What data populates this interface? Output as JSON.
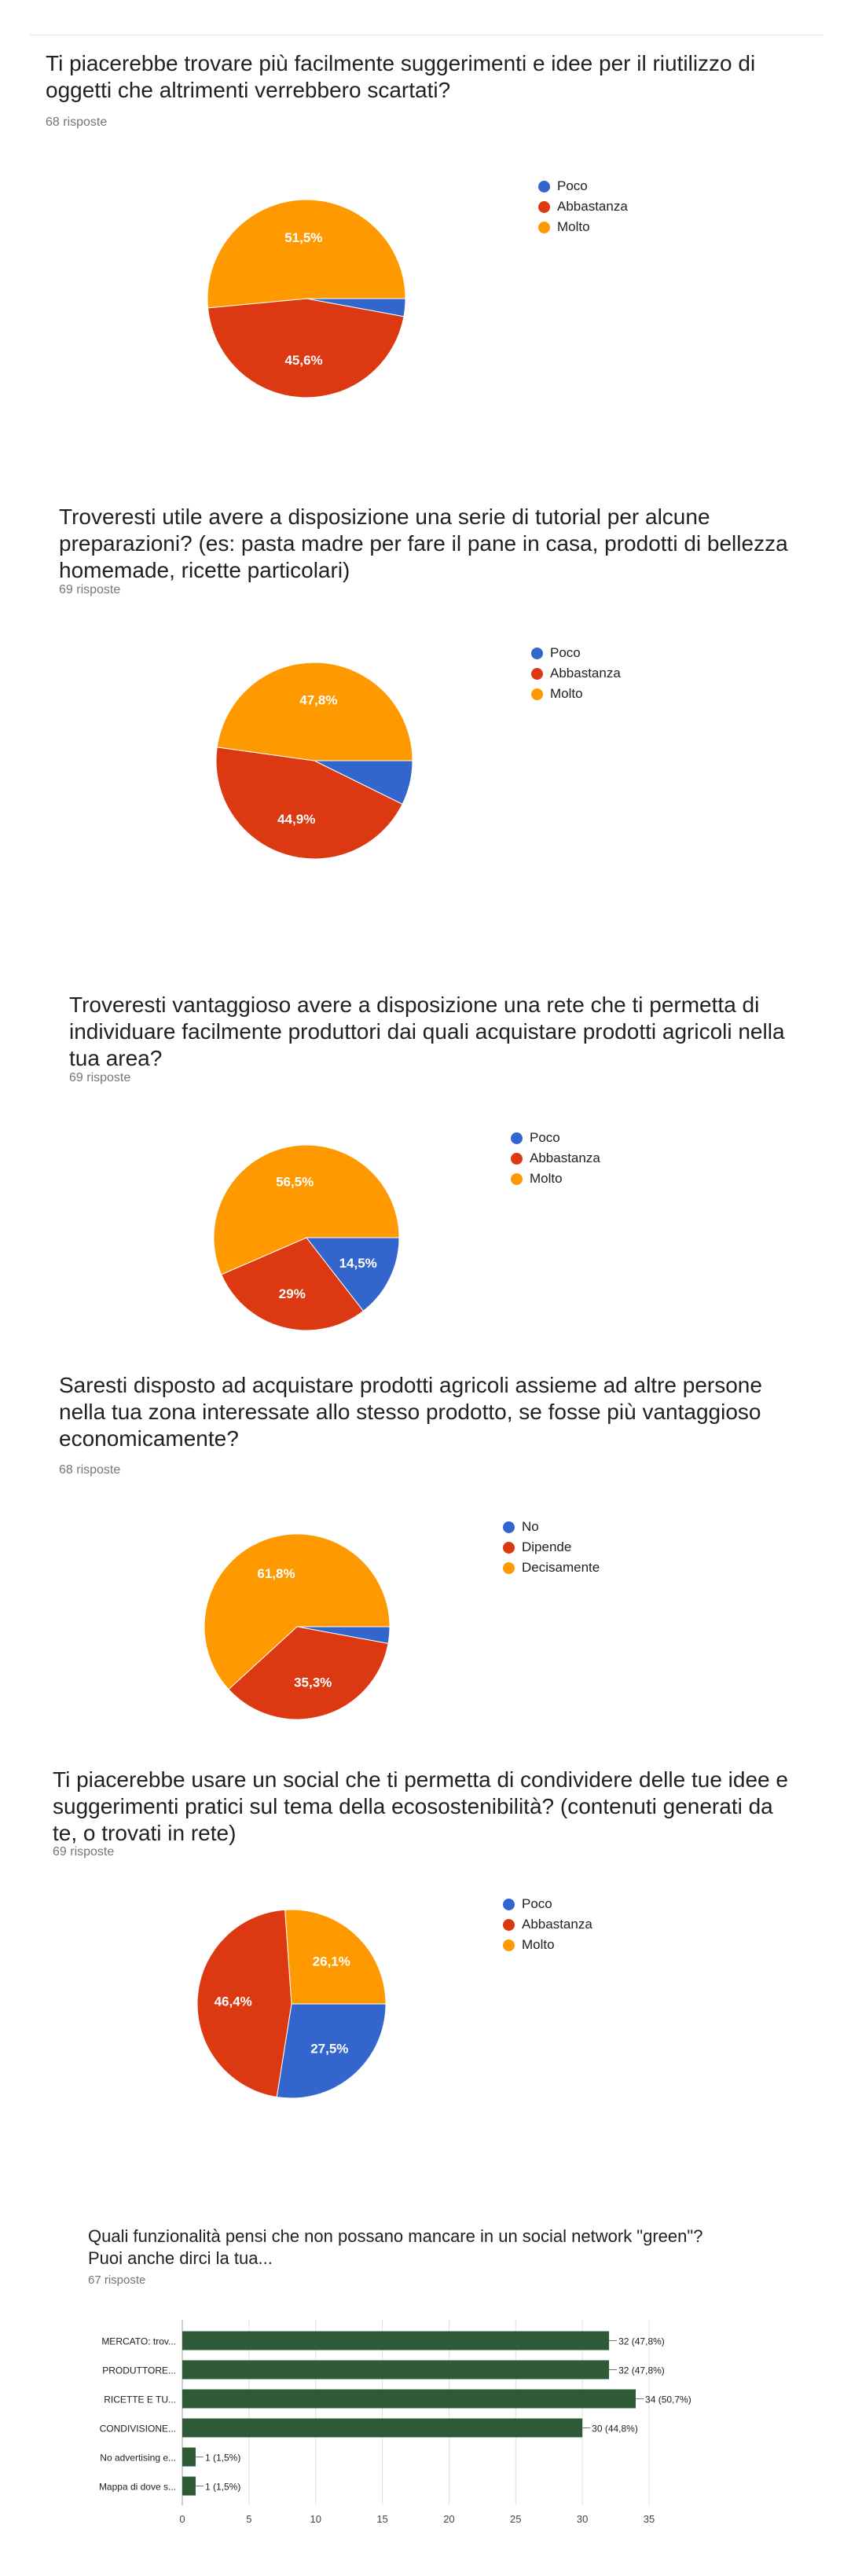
{
  "colors": {
    "blue": "#3366cc",
    "red": "#dc3912",
    "orange": "#ff9900",
    "bar": "#2e5a37"
  },
  "questions": [
    {
      "title": "Ti piacerebbe trovare più facilmente suggerimenti e idee per il riutilizzo di oggetti che altrimenti verrebbero scartati?",
      "responses": "68 risposte",
      "legend": [
        "Poco",
        "Abbastanza",
        "Molto"
      ],
      "labels": [
        "",
        "45,6%",
        "51,5%"
      ]
    },
    {
      "title": "Troveresti utile avere a disposizione una serie di tutorial per alcune preparazioni? (es: pasta madre per fare il pane in casa, prodotti di bellezza homemade, ricette particolari)",
      "responses": "69 risposte",
      "legend": [
        "Poco",
        "Abbastanza",
        "Molto"
      ],
      "labels": [
        "",
        "44,9%",
        "47,8%"
      ]
    },
    {
      "title": "Troveresti vantaggioso avere a disposizione una rete che ti permetta di individuare facilmente produttori dai quali acquistare prodotti agricoli nella tua area?",
      "responses": "69 risposte",
      "legend": [
        "Poco",
        "Abbastanza",
        "Molto"
      ],
      "labels": [
        "14,5%",
        "29%",
        "56,5%"
      ]
    },
    {
      "title": "Saresti disposto ad acquistare prodotti agricoli assieme ad altre persone nella tua zona interessate allo stesso prodotto, se fosse più vantaggioso economicamente?",
      "responses": "68 risposte",
      "legend": [
        "No",
        "Dipende",
        "Decisamente"
      ],
      "labels": [
        "",
        "35,3%",
        "61,8%"
      ]
    },
    {
      "title": "Ti piacerebbe usare un social che ti permetta di condividere delle tue idee e suggerimenti pratici sul tema della ecosostenibilità? (contenuti generati da te, o trovati in rete)",
      "responses": "69 risposte",
      "legend": [
        "Poco",
        "Abbastanza",
        "Molto"
      ],
      "labels": [
        "27,5%",
        "46,4%",
        "26,1%"
      ]
    },
    {
      "title": "Quali funzionalità pensi che non possano mancare in un social network \"green\"? Puoi anche dirci la tua...",
      "responses": "67 risposte"
    }
  ],
  "chart_data": [
    {
      "type": "pie",
      "categories": [
        "Poco",
        "Abbastanza",
        "Molto"
      ],
      "values": [
        2.9,
        45.6,
        51.5
      ],
      "colors": [
        "#3366cc",
        "#dc3912",
        "#ff9900"
      ]
    },
    {
      "type": "pie",
      "categories": [
        "Poco",
        "Abbastanza",
        "Molto"
      ],
      "values": [
        7.3,
        44.9,
        47.8
      ],
      "colors": [
        "#3366cc",
        "#dc3912",
        "#ff9900"
      ]
    },
    {
      "type": "pie",
      "categories": [
        "Poco",
        "Abbastanza",
        "Molto"
      ],
      "values": [
        14.5,
        29.0,
        56.5
      ],
      "colors": [
        "#3366cc",
        "#dc3912",
        "#ff9900"
      ]
    },
    {
      "type": "pie",
      "categories": [
        "No",
        "Dipende",
        "Decisamente"
      ],
      "values": [
        2.9,
        35.3,
        61.8
      ],
      "colors": [
        "#3366cc",
        "#dc3912",
        "#ff9900"
      ]
    },
    {
      "type": "pie",
      "categories": [
        "Poco",
        "Abbastanza",
        "Molto"
      ],
      "values": [
        27.5,
        46.4,
        26.1
      ],
      "colors": [
        "#3366cc",
        "#dc3912",
        "#ff9900"
      ]
    },
    {
      "type": "bar",
      "orientation": "horizontal",
      "categories": [
        "MERCATO: trov...",
        "PRODUTTORE...",
        "RICETTE E TU...",
        "CONDIVISIONE...",
        "No advertising e...",
        "Mappa di dove s..."
      ],
      "values": [
        32,
        32,
        34,
        30,
        1,
        1
      ],
      "value_labels": [
        "32 (47,8%)",
        "32 (47,8%)",
        "34 (50,7%)",
        "30 (44,8%)",
        "1 (1,5%)",
        "1 (1,5%)"
      ],
      "xticks": [
        0,
        5,
        10,
        15,
        20,
        25,
        30,
        35
      ],
      "xlim": [
        0,
        35
      ],
      "grid": true
    }
  ]
}
